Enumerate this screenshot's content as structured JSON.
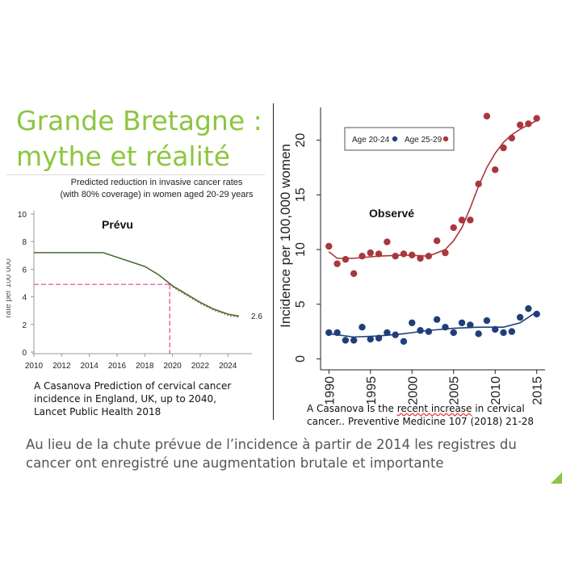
{
  "slide": {
    "title_line1": "Grande Bretagne :",
    "title_line2": "mythe et réalité",
    "conclusion": "Au lieu de la chute prévue de l’incidence à partir de 2014 les registres du cancer ont enregistré une augmentation brutale et importante",
    "colors": {
      "title": "#8cc63f",
      "conclusion": "#555555"
    }
  },
  "left_caption": "A Casanova Prediction of cervical cancer incidence in England, UK, up to 2040, Lancet Public Health 2018",
  "right_caption_pre": "A Casanova Is the ",
  "right_caption_underlined": "recent increase",
  "right_caption_post": " in cervical cancer.. Preventive Medicine 107 (2018) 21-28",
  "chart_data": [
    {
      "type": "line",
      "title": "Predicted reduction in invasive cancer rates",
      "subtitle": "(with 80% coverage) in women aged 20-29 years",
      "ylabel": "rate per 100 000",
      "annotation": "Prévu",
      "end_label": "2.6",
      "xlim": [
        2010,
        2025.5
      ],
      "ylim": [
        0,
        10
      ],
      "xticks": [
        2010,
        2012,
        2014,
        2016,
        2018,
        2020,
        2022,
        2024
      ],
      "yticks": [
        0,
        2,
        4,
        6,
        8,
        10
      ],
      "reference": {
        "x": 2019.8,
        "y": 4.9,
        "color": "#e0409a"
      },
      "series": [
        {
          "color": "#4a6b30",
          "x": [
            2010,
            2015,
            2018,
            2019,
            2020,
            2021,
            2022,
            2023,
            2024,
            2024.8
          ],
          "y": [
            7.2,
            7.2,
            6.2,
            5.6,
            4.8,
            4.2,
            3.6,
            3.1,
            2.75,
            2.6
          ]
        }
      ]
    },
    {
      "type": "scatter",
      "ylabel": "Incidence per 100,000 women",
      "annotation": "Observé",
      "xlim": [
        1989,
        2016
      ],
      "ylim": [
        -1,
        23
      ],
      "xticks": [
        1990,
        1995,
        2000,
        2005,
        2010,
        2015
      ],
      "yticks": [
        0,
        5,
        10,
        15,
        20
      ],
      "legend_position": "top",
      "series": [
        {
          "name": "Age 20-24",
          "color": "#1f3f7a",
          "x": [
            1990,
            1991,
            1992,
            1993,
            1994,
            1995,
            1996,
            1997,
            1998,
            1999,
            2000,
            2001,
            2002,
            2003,
            2004,
            2005,
            2006,
            2007,
            2008,
            2009,
            2010,
            2011,
            2012,
            2013,
            2014,
            2015
          ],
          "y": [
            2.4,
            2.4,
            1.7,
            1.7,
            2.9,
            1.8,
            1.9,
            2.4,
            2.2,
            1.6,
            3.3,
            2.6,
            2.5,
            3.6,
            2.9,
            2.4,
            3.3,
            3.1,
            2.3,
            3.5,
            2.7,
            2.4,
            2.5,
            3.8,
            4.6,
            4.1
          ],
          "fit_x": [
            1990,
            1993,
            1996,
            1999,
            2002,
            2005,
            2008,
            2011,
            2013,
            2015
          ],
          "fit_y": [
            2.3,
            2.0,
            2.1,
            2.3,
            2.6,
            2.8,
            2.9,
            2.9,
            3.3,
            4.3
          ]
        },
        {
          "name": "Age 25-29",
          "color": "#a8383d",
          "x": [
            1990,
            1991,
            1992,
            1993,
            1994,
            1995,
            1996,
            1997,
            1998,
            1999,
            2000,
            2001,
            2002,
            2003,
            2004,
            2005,
            2006,
            2007,
            2008,
            2009,
            2010,
            2011,
            2012,
            2013,
            2014,
            2015
          ],
          "y": [
            10.3,
            8.7,
            9.1,
            7.8,
            9.4,
            9.7,
            9.6,
            10.7,
            9.4,
            9.6,
            9.5,
            9.2,
            9.4,
            10.8,
            9.7,
            12.0,
            12.7,
            12.7,
            16.0,
            22.2,
            17.3,
            19.3,
            20.2,
            21.4,
            21.5,
            22.0
          ],
          "fit_x": [
            1990,
            1991,
            1993,
            1996,
            1999,
            2002,
            2004,
            2005,
            2006,
            2007,
            2008,
            2009,
            2010,
            2011,
            2012,
            2013,
            2014,
            2015
          ],
          "fit_y": [
            9.8,
            9.2,
            9.2,
            9.4,
            9.5,
            9.4,
            10.0,
            10.8,
            12.0,
            13.8,
            15.8,
            17.5,
            18.8,
            19.8,
            20.5,
            21.0,
            21.4,
            21.8
          ]
        }
      ]
    }
  ]
}
